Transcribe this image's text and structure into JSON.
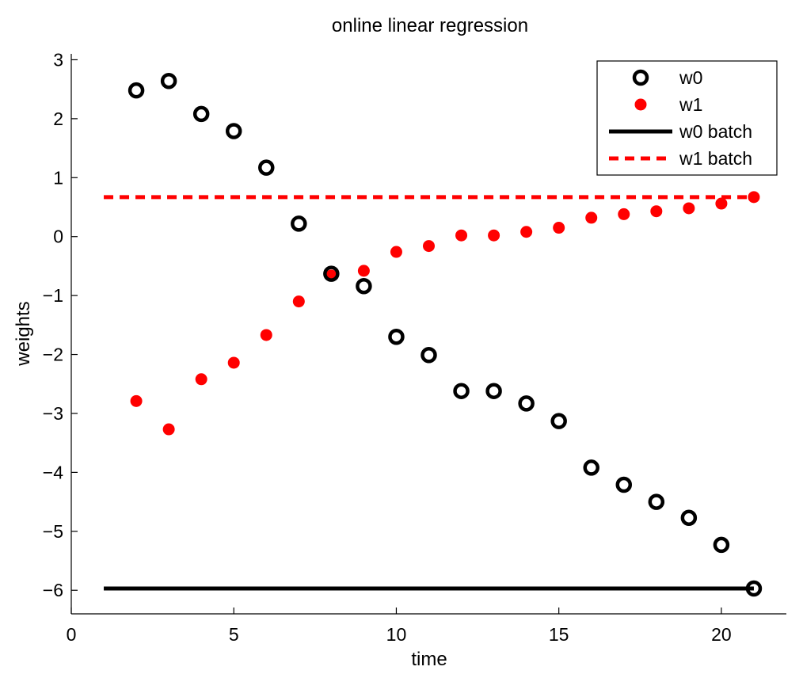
{
  "chart_data": {
    "type": "scatter",
    "title": "online linear regression",
    "xlabel": "time",
    "ylabel": "weights",
    "xlim": [
      0,
      22
    ],
    "ylim": [
      -6.4,
      3.1
    ],
    "xticks": [
      0,
      5,
      10,
      15,
      20
    ],
    "yticks": [
      -6,
      -5,
      -4,
      -3,
      -2,
      -1,
      0,
      1,
      2,
      3
    ],
    "grid": false,
    "legend_position": "top-right",
    "series": [
      {
        "name": "w0",
        "marker": "open-circle",
        "color": "#000000",
        "x": [
          2,
          3,
          4,
          5,
          6,
          7,
          8,
          9,
          10,
          11,
          12,
          13,
          14,
          15,
          16,
          17,
          18,
          19,
          20,
          21
        ],
        "y": [
          2.48,
          2.64,
          2.08,
          1.79,
          1.17,
          0.22,
          -0.63,
          -0.84,
          -1.7,
          -2.01,
          -2.62,
          -2.62,
          -2.83,
          -3.13,
          -3.92,
          -4.21,
          -4.5,
          -4.77,
          -5.23,
          -5.97
        ]
      },
      {
        "name": "w1",
        "marker": "filled-dot",
        "color": "#ff0000",
        "x": [
          2,
          3,
          4,
          5,
          6,
          7,
          8,
          9,
          10,
          11,
          12,
          13,
          14,
          15,
          16,
          17,
          18,
          19,
          20,
          21
        ],
        "y": [
          -2.79,
          -3.27,
          -2.42,
          -2.14,
          -1.67,
          -1.1,
          -0.66,
          -0.58,
          -0.26,
          -0.16,
          0.02,
          0.02,
          0.08,
          0.15,
          0.32,
          0.38,
          0.43,
          0.48,
          0.56,
          0.67
        ]
      },
      {
        "name": "w0 batch",
        "style": "solid-line",
        "color": "#000000",
        "x": [
          1,
          21
        ],
        "y": [
          -5.97,
          -5.97
        ]
      },
      {
        "name": "w1 batch",
        "style": "dashed-line",
        "color": "#ff0000",
        "x": [
          1,
          21
        ],
        "y": [
          0.67,
          0.67
        ]
      }
    ]
  }
}
